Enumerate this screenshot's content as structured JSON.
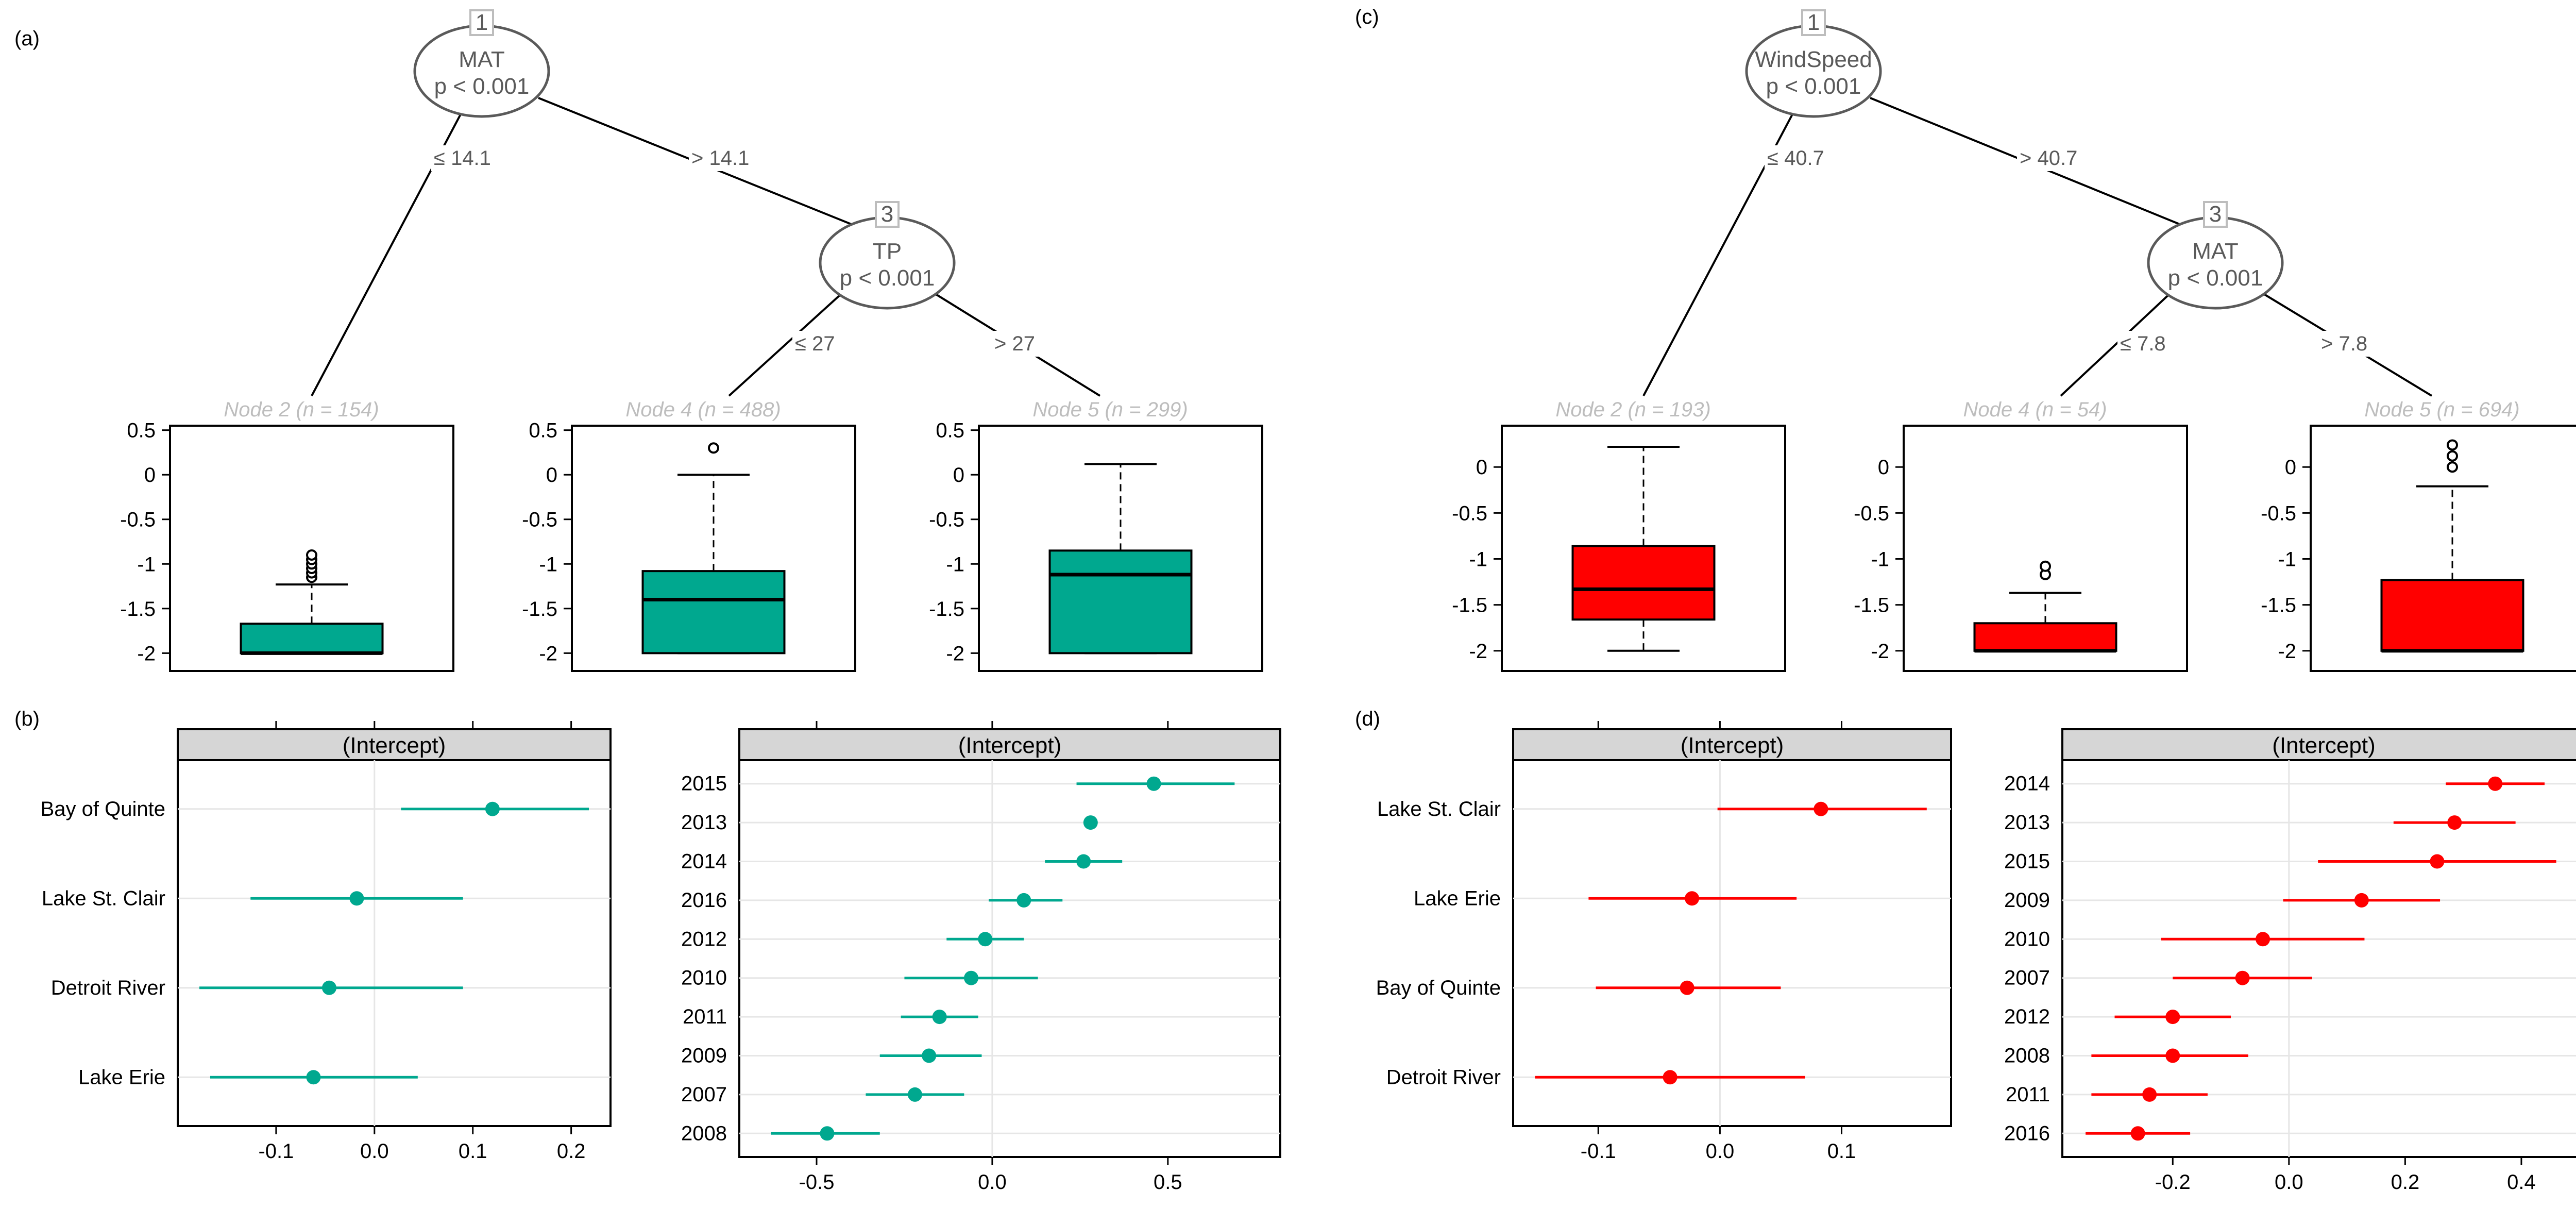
{
  "colors": {
    "teal": "#00a88f",
    "red": "#ff0000",
    "node_stroke": "#5a5a5a",
    "strip_fill": "#d6d6d6",
    "grid": "#e6e6e6",
    "node_label": "#bdbdbd"
  },
  "panel_labels": {
    "a": "(a)",
    "b": "(b)",
    "c": "(c)",
    "d": "(d)"
  },
  "chart_data": [
    {
      "type": "tree",
      "panel": "(a)",
      "color": "#00a88f",
      "nodes": [
        {
          "id": "1",
          "var": "MAT",
          "p": "p < 0.001"
        },
        {
          "id": "3",
          "var": "TP",
          "p": "p < 0.001"
        }
      ],
      "edges": [
        "≤ 14.1",
        "> 14.1",
        "≤ 27",
        "> 27"
      ],
      "yticks": [
        "0.5",
        "0",
        "-0.5",
        "-1",
        "-1.5",
        "-2"
      ],
      "ylim": [
        -2.2,
        0.55
      ],
      "leaves": [
        {
          "title": "Node 2 (n = 154)",
          "whisker_low": -2.0,
          "q1": -2.0,
          "median": -2.0,
          "q3": -1.67,
          "whisker_high": -1.23,
          "outliers": [
            -1.15,
            -1.1,
            -1.05,
            -1.0,
            -0.95,
            -0.9
          ]
        },
        {
          "title": "Node 4 (n = 488)",
          "whisker_low": -2.0,
          "q1": -2.0,
          "median": -1.4,
          "q3": -1.08,
          "whisker_high": 0.0,
          "outliers": [
            0.3
          ]
        },
        {
          "title": "Node 5 (n = 299)",
          "whisker_low": -2.0,
          "q1": -2.0,
          "median": -1.12,
          "q3": -0.85,
          "whisker_high": 0.12,
          "outliers": []
        }
      ]
    },
    {
      "type": "tree",
      "panel": "(c)",
      "color": "#ff0000",
      "nodes": [
        {
          "id": "1",
          "var": "WindSpeed",
          "p": "p < 0.001"
        },
        {
          "id": "3",
          "var": "MAT",
          "p": "p < 0.001"
        }
      ],
      "edges": [
        "≤ 40.7",
        "> 40.7",
        "≤ 7.8",
        "> 7.8"
      ],
      "yticks": [
        "0",
        "-0.5",
        "-1",
        "-1.5",
        "-2"
      ],
      "ylim": [
        -2.22,
        0.45
      ],
      "leaves": [
        {
          "title": "Node 2 (n = 193)",
          "whisker_low": -2.0,
          "q1": -1.66,
          "median": -1.33,
          "q3": -0.86,
          "whisker_high": 0.22,
          "outliers": []
        },
        {
          "title": "Node 4 (n = 54)",
          "whisker_low": -2.0,
          "q1": -2.0,
          "median": -2.0,
          "q3": -1.7,
          "whisker_high": -1.37,
          "outliers": [
            -1.17,
            -1.08
          ]
        },
        {
          "title": "Node 5 (n = 694)",
          "whisker_low": -2.0,
          "q1": -2.0,
          "median": -2.0,
          "q3": -1.23,
          "whisker_high": -0.21,
          "outliers": [
            0.0,
            0.12,
            0.24
          ]
        }
      ]
    },
    {
      "type": "dotplot",
      "panel": "(b) left",
      "strip": "(Intercept)",
      "color": "#00a88f",
      "xlim": [
        -0.2,
        0.24
      ],
      "xticks": [
        -0.1,
        0.0,
        0.1,
        0.2
      ],
      "xtick_labels": [
        "-0.1",
        "0.0",
        "0.1",
        "0.2"
      ],
      "axis_ticks_top": true,
      "axis_labels_bottom": true,
      "rows": [
        {
          "label": "Bay of Quinte",
          "est": 0.12,
          "lo": 0.027,
          "hi": 0.218
        },
        {
          "label": "Lake St. Clair",
          "est": -0.018,
          "lo": -0.126,
          "hi": 0.09
        },
        {
          "label": "Detroit River",
          "est": -0.046,
          "lo": -0.178,
          "hi": 0.09
        },
        {
          "label": "Lake Erie",
          "est": -0.062,
          "lo": -0.167,
          "hi": 0.044
        }
      ]
    },
    {
      "type": "dotplot",
      "panel": "(b) right",
      "strip": "(Intercept)",
      "color": "#00a88f",
      "xlim": [
        -0.72,
        0.82
      ],
      "xticks": [
        -0.5,
        0.0,
        0.5
      ],
      "xtick_labels": [
        "-0.5",
        "0.0",
        "0.5"
      ],
      "axis_ticks_top": true,
      "axis_labels_bottom": true,
      "rows": [
        {
          "label": "2015",
          "est": 0.46,
          "lo": 0.24,
          "hi": 0.69
        },
        {
          "label": "2013",
          "est": 0.28,
          "lo": 0.27,
          "hi": 0.29
        },
        {
          "label": "2014",
          "est": 0.26,
          "lo": 0.15,
          "hi": 0.37
        },
        {
          "label": "2016",
          "est": 0.09,
          "lo": -0.01,
          "hi": 0.2
        },
        {
          "label": "2012",
          "est": -0.02,
          "lo": -0.13,
          "hi": 0.09
        },
        {
          "label": "2010",
          "est": -0.06,
          "lo": -0.25,
          "hi": 0.13
        },
        {
          "label": "2011",
          "est": -0.15,
          "lo": -0.26,
          "hi": -0.04
        },
        {
          "label": "2009",
          "est": -0.18,
          "lo": -0.32,
          "hi": -0.03
        },
        {
          "label": "2007",
          "est": -0.22,
          "lo": -0.36,
          "hi": -0.08
        },
        {
          "label": "2008",
          "est": -0.47,
          "lo": -0.63,
          "hi": -0.32
        }
      ]
    },
    {
      "type": "dotplot",
      "panel": "(d) left",
      "strip": "(Intercept)",
      "color": "#ff0000",
      "xlim": [
        -0.17,
        0.19
      ],
      "xticks": [
        -0.1,
        0.0,
        0.1
      ],
      "xtick_labels": [
        "-0.1",
        "0.0",
        "0.1"
      ],
      "axis_ticks_top": true,
      "axis_labels_bottom": true,
      "rows": [
        {
          "label": "Lake St. Clair",
          "est": 0.083,
          "lo": -0.002,
          "hi": 0.17
        },
        {
          "label": "Lake Erie",
          "est": -0.023,
          "lo": -0.108,
          "hi": 0.063
        },
        {
          "label": "Bay of Quinte",
          "est": -0.027,
          "lo": -0.102,
          "hi": 0.05
        },
        {
          "label": "Detroit River",
          "est": -0.041,
          "lo": -0.152,
          "hi": 0.07
        }
      ]
    },
    {
      "type": "dotplot",
      "panel": "(d) right",
      "strip": "(Intercept)",
      "color": "#ff0000",
      "xlim": [
        -0.39,
        0.51
      ],
      "xticks": [
        -0.2,
        0.0,
        0.2,
        0.4
      ],
      "xtick_labels": [
        "-0.2",
        "0.0",
        "0.2",
        "0.4"
      ],
      "axis_ticks_top": false,
      "axis_labels_bottom": true,
      "rows": [
        {
          "label": "2014",
          "est": 0.355,
          "lo": 0.27,
          "hi": 0.44
        },
        {
          "label": "2013",
          "est": 0.285,
          "lo": 0.18,
          "hi": 0.39
        },
        {
          "label": "2015",
          "est": 0.255,
          "lo": 0.05,
          "hi": 0.46
        },
        {
          "label": "2009",
          "est": 0.125,
          "lo": -0.01,
          "hi": 0.26
        },
        {
          "label": "2010",
          "est": -0.045,
          "lo": -0.22,
          "hi": 0.13
        },
        {
          "label": "2007",
          "est": -0.08,
          "lo": -0.2,
          "hi": 0.04
        },
        {
          "label": "2012",
          "est": -0.2,
          "lo": -0.3,
          "hi": -0.1
        },
        {
          "label": "2008",
          "est": -0.2,
          "lo": -0.34,
          "hi": -0.07
        },
        {
          "label": "2011",
          "est": -0.24,
          "lo": -0.34,
          "hi": -0.14
        },
        {
          "label": "2016",
          "est": -0.26,
          "lo": -0.35,
          "hi": -0.17
        }
      ]
    }
  ]
}
